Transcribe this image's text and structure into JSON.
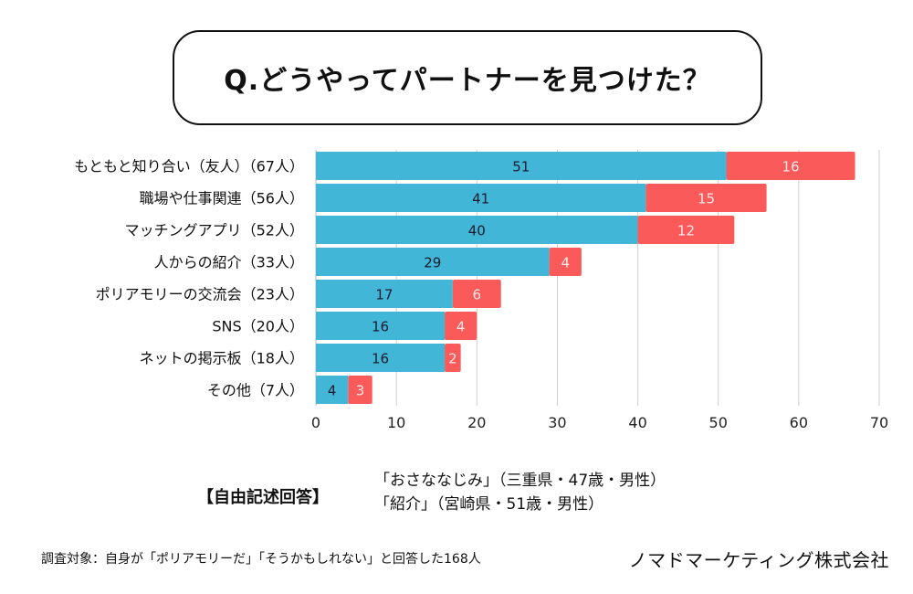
{
  "title": "Q.どうやってパートナーを見つけた？",
  "chart_data": {
    "type": "bar",
    "orientation": "horizontal",
    "stacked": true,
    "title": "Q.どうやってパートナーを見つけた？",
    "categories": [
      "もともと知り合い（友人）（67人）",
      "職場や仕事関連（56人）",
      "マッチングアプリ（52人）",
      "人からの紹介（33人）",
      "ポリアモリーの交流会（23人）",
      "SNS（20人）",
      "ネットの掲示板（18人）",
      "その他（7人）"
    ],
    "series": [
      {
        "name": "series-1",
        "color": "#41b6d6",
        "label_color": "#1a1a2e",
        "values": [
          51,
          41,
          40,
          29,
          17,
          16,
          16,
          4
        ]
      },
      {
        "name": "series-2",
        "color": "#fa5a5a",
        "label_color": "#fde8e8",
        "values": [
          16,
          15,
          12,
          4,
          6,
          4,
          2,
          3
        ]
      }
    ],
    "totals": [
      67,
      56,
      52,
      33,
      23,
      20,
      18,
      7
    ],
    "xlim": [
      0,
      70
    ],
    "xticks": [
      0,
      10,
      20,
      30,
      40,
      50,
      60,
      70
    ],
    "grid": true,
    "legend": "none",
    "xlabel": "",
    "ylabel": ""
  },
  "free_response": {
    "heading": "【自由記述回答】",
    "answers": [
      "「おさななじみ」（三重県・47歳・男性）",
      "「紹介」（宮崎県・51歳・男性）"
    ]
  },
  "footnote": "調査対象：自身が「ポリアモリーだ」「そうかもしれない」と回答した168人",
  "company": "ノマドマーケティング株式会社"
}
